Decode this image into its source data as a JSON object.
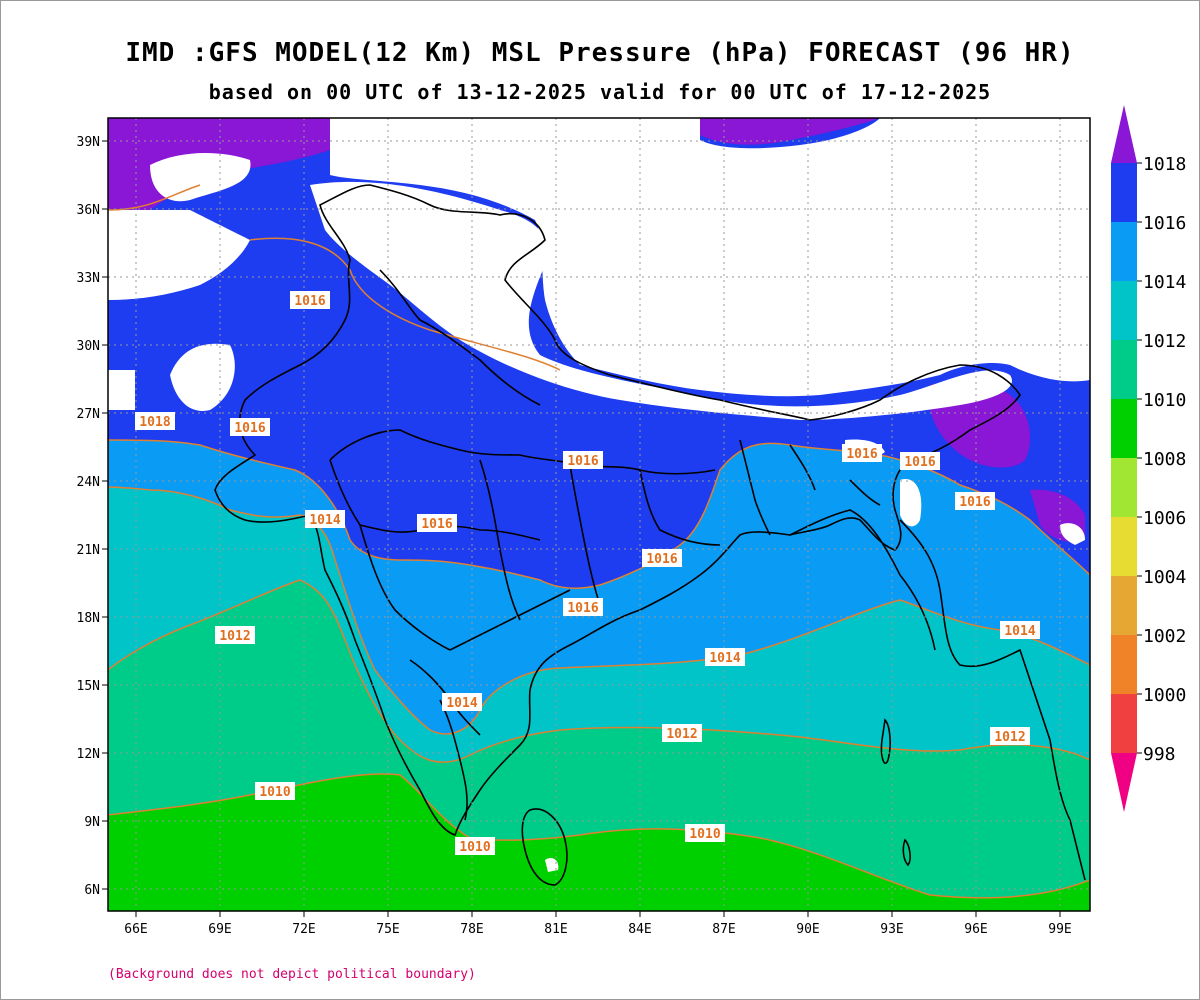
{
  "title": "IMD :GFS MODEL(12 Km) MSL Pressure (hPa) FORECAST (96 HR)",
  "subtitle": "based on 00 UTC of 13-12-2025 valid for 00 UTC of 17-12-2025",
  "footnote": "(Background does not depict political boundary)",
  "lat_ticks": [
    "39N",
    "36N",
    "33N",
    "30N",
    "27N",
    "24N",
    "21N",
    "18N",
    "15N",
    "12N",
    "9N",
    "6N"
  ],
  "lon_ticks": [
    "66E",
    "69E",
    "72E",
    "75E",
    "78E",
    "81E",
    "84E",
    "87E",
    "90E",
    "93E",
    "96E",
    "99E"
  ],
  "colorbar": {
    "labels": [
      "1018",
      "1016",
      "1014",
      "1012",
      "1010",
      "1008",
      "1006",
      "1004",
      "1002",
      "1000",
      "998"
    ],
    "colors": {
      "above_1018": "#8a16d6",
      "1016_1018": "#1e3cf0",
      "1014_1016": "#0a9bf5",
      "1012_1014": "#00c4c8",
      "1010_1012": "#00cc8a",
      "1008_1010": "#00d000",
      "1006_1008": "#a0e632",
      "1004_1006": "#e6dc32",
      "1002_1004": "#e6a832",
      "1000_1002": "#f08228",
      "998_1000": "#f04040",
      "below_998": "#f00082"
    }
  },
  "contour_labels": [
    "1016",
    "1018",
    "1016",
    "1016",
    "1014",
    "1016",
    "1016",
    "1016",
    "1012",
    "1014",
    "1014",
    "1014",
    "1012",
    "1012",
    "1010",
    "1010",
    "1010",
    "1016",
    "1016",
    "1016"
  ]
}
